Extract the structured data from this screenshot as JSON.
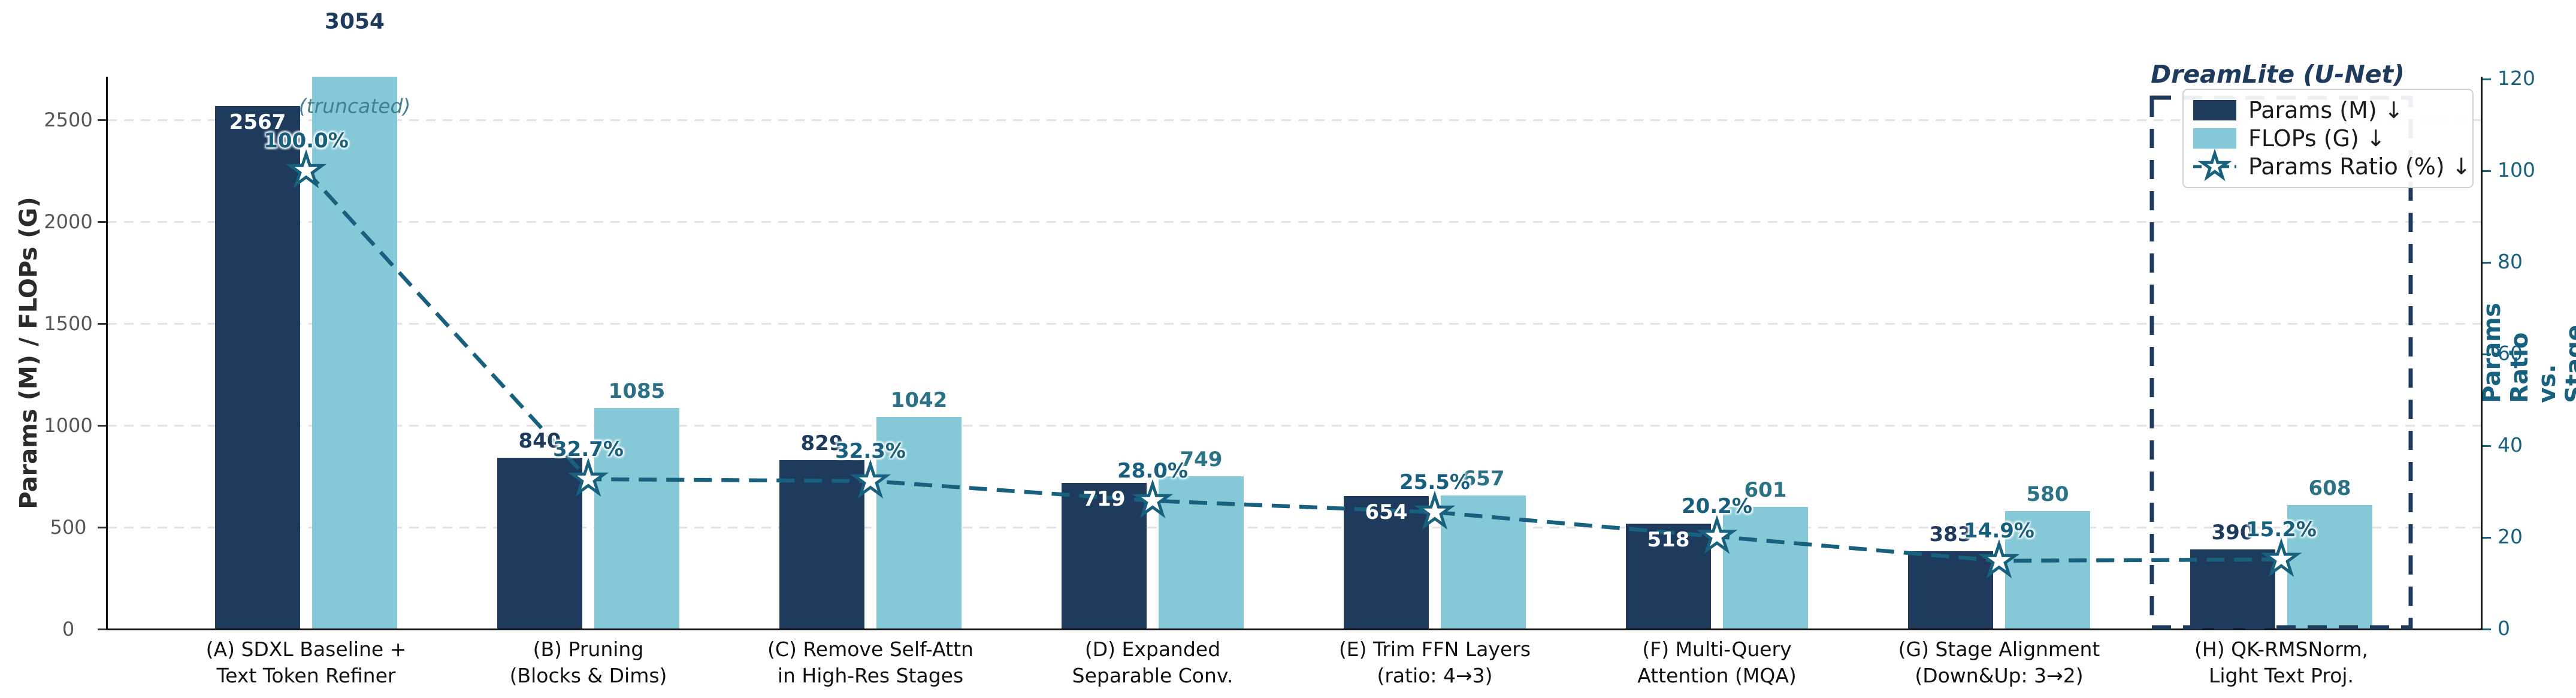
{
  "chart_data": {
    "type": "bar",
    "title": "DreamLite (U-Net)",
    "ylabel_left": "Params (M) / FLOPs (G)",
    "ylabel_right": "Params Ratio vs. Stage A (%)",
    "left_ticks": [
      0,
      500,
      1000,
      1500,
      2000,
      2500
    ],
    "right_ticks": [
      0,
      20,
      40,
      60,
      80,
      100,
      120
    ],
    "left_ylim": [
      0,
      2712
    ],
    "right_ylim": [
      0,
      120
    ],
    "grid": "horizontal-dashed",
    "legend_position": "upper right",
    "categories": [
      [
        "(A) SDXL Baseline +",
        "Text Token Refiner"
      ],
      [
        "(B) Pruning",
        "(Blocks & Dims)"
      ],
      [
        "(C) Remove Self-Attn",
        "in High-Res Stages"
      ],
      [
        "(D) Expanded",
        "Separable Conv."
      ],
      [
        "(E) Trim FFN Layers",
        "(ratio: 4→3)"
      ],
      [
        "(F) Multi-Query",
        "Attention (MQA)"
      ],
      [
        "(G) Stage Alignment",
        "(Down&Up: 3→2)"
      ],
      [
        "(H) QK-RMSNorm,",
        "Light Text Proj."
      ]
    ],
    "series": [
      {
        "name": "Params (M) ↓",
        "type": "bar",
        "color": "#1e3b5d",
        "values": [
          2567,
          840,
          829,
          719,
          654,
          518,
          383,
          390
        ],
        "label_placement": [
          "inside",
          "above",
          "above",
          "inside",
          "inside",
          "inside",
          "above",
          "above"
        ]
      },
      {
        "name": "FLOPs (G) ↓",
        "type": "bar",
        "color": "#85c8d8",
        "values": [
          3054,
          1085,
          1042,
          749,
          657,
          601,
          580,
          608
        ],
        "truncated": [
          true,
          false,
          false,
          false,
          false,
          false,
          false,
          false
        ]
      },
      {
        "name": "Params Ratio (%) ↓",
        "type": "line",
        "color": "#17607e",
        "values": [
          100.0,
          32.7,
          32.3,
          28.0,
          25.5,
          20.2,
          14.9,
          15.2
        ],
        "marker": "star",
        "linestyle": "dashed"
      }
    ],
    "annotations": {
      "truncated_note": "(truncated)"
    },
    "highlight_box": {
      "group_index": 7,
      "style": "dashed",
      "color": "#1e3b5d"
    }
  },
  "legend": {
    "entries": [
      {
        "label": "Params (M) ↓",
        "swatch_color": "#1e3b5d",
        "marker": "square"
      },
      {
        "label": "FLOPs (G) ↓",
        "swatch_color": "#85c8d8",
        "marker": "square"
      },
      {
        "label": "Params Ratio (%) ↓",
        "swatch_color": "#17607e",
        "marker": "star-dashed-line"
      }
    ]
  },
  "colors": {
    "params_bar": "#1e3b5d",
    "flops_bar": "#85c8d8",
    "ratio_line": "#17607e",
    "ratio_text": "#175f7d",
    "flops_text": "#2b7287",
    "gridline": "#e3e3e3",
    "left_tick_text": "#575757",
    "right_tick_text": "#17607e",
    "x_tick_text": "#121212",
    "left_axis_title": "#2b2b2b"
  }
}
